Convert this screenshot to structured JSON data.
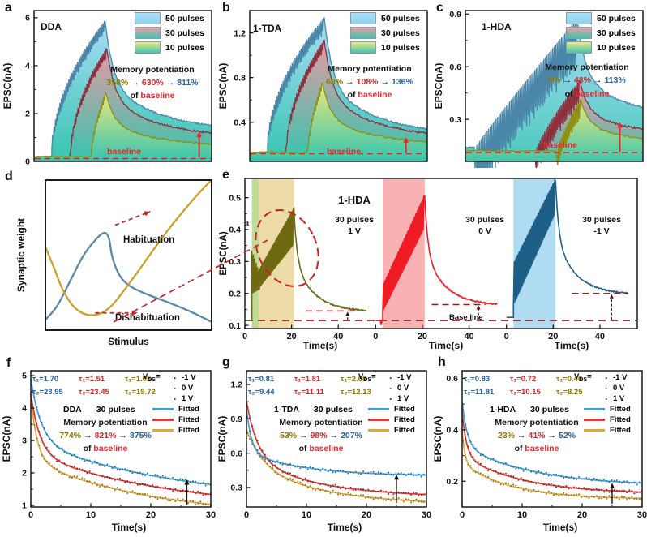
{
  "glyphs": {
    "arrow": "→",
    "of": "of",
    "baseline": "baseline",
    "v": "V",
    "ds": "DS",
    "eq": "=",
    "dot": "·"
  },
  "colors": {
    "accent_red": "#e8242b",
    "dark_red_dash": "#9b1b1b",
    "teal": "#35c5af",
    "pot_blue_line": "#4a86a8",
    "pot_red_line": "#8e2f3e",
    "pot_olive_line": "#8f8f12",
    "pot_blue_fill": "#a9dcf5",
    "pot_red_fill": "#e49ba3",
    "pot_olive_fill": "#ebe77e",
    "fit_blue": "#3f9fd8",
    "fit_red": "#e03a34",
    "fit_yellow": "#e2a636",
    "seq_olive": "#6f6a12",
    "seq_red": "#ee1c25",
    "seq_blue": "#1d5e85",
    "band_green": "#b9d98a",
    "band_tan": "#ecd9a0",
    "band_pink": "#f7abad",
    "band_lblue": "#a8d9f2",
    "d_blue": "#5b87a8",
    "d_gold": "#c9a227",
    "d_arrow": "#c0272d"
  },
  "a": {
    "letter": "a",
    "title": "DDA",
    "legend": [
      "50 pulses",
      "30 pulses",
      "10 pulses"
    ],
    "memory_title": "Memory potentiation",
    "pcts": [
      "358%",
      "630%",
      "811%"
    ],
    "baseline_label": "baseline"
  },
  "b": {
    "letter": "b",
    "title": "1-TDA",
    "legend": [
      "50 pulses",
      "30 pulses",
      "10 pulses"
    ],
    "memory_title": "Memory potentiation",
    "pcts": [
      "68%",
      "108%",
      "136%"
    ],
    "baseline_label": "baseline"
  },
  "c": {
    "letter": "c",
    "title": "1-HDA",
    "legend": [
      "50 pulses",
      "30 pulses",
      "10 pulses"
    ],
    "memory_title": "Memory potentiation",
    "pcts": [
      "0%",
      "43%",
      "113%"
    ],
    "baseline_label": "baseline"
  },
  "d": {
    "letter": "d",
    "habituation": "Habituation",
    "dishabituation": "Dishabituation"
  },
  "e": {
    "letter": "e",
    "title": "1-HDA",
    "stray_label": "a",
    "baseline_label": "Base line",
    "xlabel": "Time(s)",
    "segs": [
      {
        "l1": "30 pulses",
        "l2": "1 V"
      },
      {
        "l1": "30 pulses",
        "l2": "0 V"
      },
      {
        "l1": "30 pulses",
        "l2": "-1 V"
      }
    ]
  },
  "vlegend": {
    "volts": [
      "-1 V",
      "0 V",
      "1 V"
    ],
    "fitted": [
      "Fitted",
      "Fitted",
      "Fitted"
    ]
  },
  "f": {
    "letter": "f",
    "material": "DDA",
    "pulses": "30 pulses",
    "memory_title": "Memory potentiation",
    "pcts": [
      "774%",
      "821%",
      "875%"
    ],
    "tau1": [
      "τ₁=1.70",
      "τ₁=1.51",
      "τ₁=1.05"
    ],
    "tau2": [
      "τ₂=23.95",
      "τ₂=23.45",
      "τ₂=19.72"
    ]
  },
  "g": {
    "letter": "g",
    "material": "1-TDA",
    "pulses": "30 pulses",
    "memory_title": "Memory potentiation",
    "pcts": [
      "53%",
      "98%",
      "207%"
    ],
    "tau1": [
      "τ₁=0.81",
      "τ₁=1.81",
      "τ₁=2.68"
    ],
    "tau2": [
      "τ₂=9.44",
      "τ₂=11.11",
      "τ₂=12.13"
    ]
  },
  "h": {
    "letter": "h",
    "material": "1-HDA",
    "pulses": "30 pulses",
    "memory_title": "Memory potentiation",
    "pcts": [
      "23%",
      "41%",
      "52%"
    ],
    "tau1": [
      "τ₁=0.83",
      "τ₁=0.72",
      "τ₁=0.46"
    ],
    "tau2": [
      "τ₂=11.81",
      "τ₂=10.15",
      "τ₂=8.25"
    ]
  },
  "chart_data": [
    {
      "type": "pot",
      "target": "a",
      "ylabel": "EPSC(nA)",
      "ylim": [
        0,
        6.3
      ],
      "yticks": [
        0,
        2,
        4,
        6
      ],
      "ytick_labels": [
        "0",
        "2",
        "4",
        "6"
      ],
      "baseline": 0.12,
      "arrow": {
        "x": 0.93,
        "to": 1.25
      },
      "series": [
        {
          "key": "blue",
          "name": "50 pulses",
          "tStart": 0.1,
          "tPeak": 0.4,
          "peak": 5.85,
          "amp": 0.5,
          "start": 0.1,
          "end": 1.22,
          "riseExp": 0.5
        },
        {
          "key": "red",
          "name": "30 pulses",
          "tStart": 0.21,
          "tPeak": 0.41,
          "peak": 4.7,
          "amp": 0.42,
          "start": 0.18,
          "end": 0.95,
          "riseExp": 0.5
        },
        {
          "key": "olive",
          "name": "10 pulses",
          "tStart": 0.325,
          "tPeak": 0.405,
          "peak": 2.85,
          "amp": 0.32,
          "start": 0.2,
          "end": 0.58,
          "riseExp": 0.6
        }
      ]
    },
    {
      "type": "pot",
      "target": "b",
      "ylabel": "EPSC(nA)",
      "ylim": [
        0.05,
        1.4
      ],
      "yticks": [
        0.4,
        0.8,
        1.2
      ],
      "ytick_labels": [
        "0.4",
        "0.8",
        "1.2"
      ],
      "baseline": 0.12,
      "arrow": {
        "x": 0.88,
        "to": 0.27
      },
      "series": [
        {
          "key": "blue",
          "name": "50 pulses",
          "tStart": 0.1,
          "tPeak": 0.42,
          "peak": 1.33,
          "amp": 0.13,
          "start": 0.12,
          "end": 0.27,
          "riseExp": 0.5
        },
        {
          "key": "red",
          "name": "30 pulses",
          "tStart": 0.21,
          "tPeak": 0.42,
          "peak": 1.13,
          "amp": 0.1,
          "start": 0.13,
          "end": 0.245,
          "riseExp": 0.5
        },
        {
          "key": "olive",
          "name": "10 pulses",
          "tStart": 0.33,
          "tPeak": 0.41,
          "peak": 0.75,
          "amp": 0.08,
          "start": 0.13,
          "end": 0.19,
          "riseExp": 0.6
        }
      ]
    },
    {
      "type": "pot",
      "target": "c",
      "ylabel": "EPSC(nA)",
      "ylim": [
        0.06,
        0.92
      ],
      "yticks": [
        0.3,
        0.6,
        0.9
      ],
      "ytick_labels": [
        "0.3",
        "0.6",
        "0.9"
      ],
      "baseline": 0.11,
      "arrow": {
        "x": 0.87,
        "to": 0.285
      },
      "series": [
        {
          "key": "blue",
          "name": "50 pulses",
          "tStart": 0.06,
          "tPeak": 0.63,
          "peak": 0.87,
          "amp": 0.25,
          "start": 0.14,
          "end": 0.29,
          "riseExp": 0.95
        },
        {
          "key": "red",
          "name": "30 pulses",
          "tStart": 0.4,
          "tPeak": 0.645,
          "peak": 0.52,
          "amp": 0.13,
          "start": 0.115,
          "end": 0.2,
          "riseExp": 0.8
        },
        {
          "key": "olive",
          "name": "10 pulses",
          "tStart": 0.52,
          "tPeak": 0.65,
          "peak": 0.41,
          "amp": 0.1,
          "start": 0.12,
          "end": 0.155,
          "riseExp": 0.8
        }
      ]
    },
    {
      "type": "dual",
      "target": "d",
      "xlabel": "Stimulus",
      "ylabel": "Synaptic weight",
      "curves": [
        {
          "key": "blue",
          "pts": [
            [
              0,
              0.07
            ],
            [
              0.07,
              0.16
            ],
            [
              0.15,
              0.33
            ],
            [
              0.23,
              0.5
            ],
            [
              0.3,
              0.6
            ],
            [
              0.345,
              0.645
            ],
            [
              0.37,
              0.64
            ],
            [
              0.385,
              0.6
            ],
            [
              0.4,
              0.5
            ],
            [
              0.43,
              0.4
            ],
            [
              0.47,
              0.33
            ],
            [
              0.53,
              0.28
            ],
            [
              0.62,
              0.235
            ],
            [
              0.75,
              0.18
            ],
            [
              0.88,
              0.12
            ],
            [
              1,
              0.055
            ]
          ]
        },
        {
          "key": "gold",
          "pts": [
            [
              0,
              0.555
            ],
            [
              0.05,
              0.42
            ],
            [
              0.1,
              0.28
            ],
            [
              0.16,
              0.17
            ],
            [
              0.22,
              0.115
            ],
            [
              0.28,
              0.1
            ],
            [
              0.34,
              0.115
            ],
            [
              0.4,
              0.165
            ],
            [
              0.47,
              0.26
            ],
            [
              0.55,
              0.38
            ],
            [
              0.64,
              0.52
            ],
            [
              0.74,
              0.67
            ],
            [
              0.85,
              0.82
            ],
            [
              0.95,
              0.945
            ],
            [
              1,
              1.0
            ]
          ]
        }
      ],
      "arrows": [
        {
          "f": [
            0.42,
            0.7
          ],
          "t": [
            0.63,
            0.79
          ]
        },
        {
          "f": [
            0.3,
            0.115
          ],
          "t": [
            0.555,
            0.115
          ]
        }
      ]
    },
    {
      "type": "seq",
      "target": "e",
      "ylabel": "EPSC(nA)",
      "ylim": [
        0.09,
        0.56
      ],
      "yticks": [
        0.1,
        0.2,
        0.3,
        0.4,
        0.5
      ],
      "ytick_labels": [
        "0.1",
        "0.2",
        "0.3",
        "0.4",
        "0.5"
      ],
      "tmax": 56,
      "xticks": [
        0,
        20,
        40
      ],
      "xtick_labels": [
        "0",
        "20",
        "40"
      ],
      "baseline": 0.115,
      "segments": [
        {
          "key": "olive",
          "bands": [
            {
              "t0": 3,
              "t1": 6,
              "c": "band_green"
            },
            {
              "t0": 6,
              "t1": 21,
              "c": "band_tan"
            }
          ],
          "flat": 0.115,
          "spike": {
            "hi": 0.335,
            "lo": 0.2,
            "endHi": 0.27,
            "endLo": 0.212
          },
          "rise": {
            "t0": 6,
            "lo0": 0.212,
            "lo1": 0.35,
            "hi0": 0.27,
            "hi1": 0.465
          },
          "peak": 0.465,
          "end": 0.142,
          "dash": {
            "t0": 26,
            "t1": 47,
            "v": 0.145
          },
          "arrowT": 44
        },
        {
          "key": "red",
          "bands": [
            {
              "t0": 3,
              "t1": 21,
              "c": "band_pink"
            }
          ],
          "flat": 0.115,
          "dip": true,
          "rise": {
            "t0": 3,
            "lo0": 0.135,
            "lo1": 0.4,
            "hi0": 0.22,
            "hi1": 0.505
          },
          "peak": 0.505,
          "end": 0.162,
          "dash": {
            "t0": 24,
            "t1": 47,
            "v": 0.165
          },
          "arrowT": 44
        },
        {
          "key": "blue",
          "bands": [
            {
              "t0": 3,
              "t1": 21,
              "c": "band_lblue"
            }
          ],
          "flat": 0.125,
          "rise": {
            "t0": 3,
            "lo0": 0.155,
            "lo1": 0.445,
            "hi0": 0.29,
            "hi1": 0.555
          },
          "peak": 0.555,
          "end": 0.196,
          "dash": {
            "t0": 28,
            "t1": 52,
            "v": 0.2
          },
          "arrowT": 45
        }
      ]
    },
    {
      "type": "decay",
      "target": "f",
      "ylabel": "EPSC(nA)",
      "xlabel": "Time(s)",
      "ylim": [
        0.95,
        5.15
      ],
      "yticks": [
        1,
        2,
        3,
        4,
        5
      ],
      "ytick_labels": [
        "1",
        "2",
        "3",
        "4",
        "5"
      ],
      "xlim": [
        0,
        30
      ],
      "xticks": [
        0,
        10,
        20,
        30
      ],
      "xtick_labels": [
        "0",
        "10",
        "20",
        "30"
      ],
      "xminors": [
        5,
        15,
        25
      ],
      "arrow": {
        "x": 26,
        "from": 1.02,
        "to": 1.8
      },
      "series": [
        {
          "key": "blue",
          "vds": "-1 V",
          "C": 1.1,
          "A1": 1.9,
          "tau1": 1.7,
          "A2": 1.9,
          "tau2": 23.95
        },
        {
          "key": "red",
          "vds": "0 V",
          "C": 0.85,
          "A1": 1.85,
          "tau1": 1.51,
          "A2": 1.75,
          "tau2": 23.45
        },
        {
          "key": "olive",
          "vds": "1 V",
          "C": 0.65,
          "A1": 2.0,
          "tau1": 1.05,
          "A2": 1.75,
          "tau2": 19.72
        }
      ]
    },
    {
      "type": "decay",
      "target": "g",
      "ylabel": "EPSC(nA)",
      "xlabel": "Time(s)",
      "ylim": [
        0.13,
        1.32
      ],
      "yticks": [
        0.3,
        0.6,
        0.9,
        1.2
      ],
      "ytick_labels": [
        "0.3",
        "0.6",
        "0.9",
        "1.2"
      ],
      "xlim": [
        0,
        30
      ],
      "xticks": [
        0,
        10,
        20,
        30
      ],
      "xtick_labels": [
        "0",
        "10",
        "20",
        "30"
      ],
      "xminors": [
        5,
        15,
        25
      ],
      "arrow": {
        "x": 25,
        "from": 0.165,
        "to": 0.415
      },
      "series": [
        {
          "key": "blue",
          "vds": "-1 V",
          "C": 0.4,
          "A1": 0.38,
          "tau1": 0.81,
          "A2": 0.21,
          "tau2": 9.44
        },
        {
          "key": "red",
          "vds": "0 V",
          "C": 0.215,
          "A1": 0.48,
          "tau1": 1.81,
          "A2": 0.36,
          "tau2": 11.11
        },
        {
          "key": "olive",
          "vds": "1 V",
          "C": 0.148,
          "A1": 0.3,
          "tau1": 2.68,
          "A2": 0.36,
          "tau2": 12.13
        }
      ]
    },
    {
      "type": "decay",
      "target": "h",
      "ylabel": "EPSC(nA)",
      "xlabel": "Time(s)",
      "ylim": [
        0.1,
        0.63
      ],
      "yticks": [
        0.2,
        0.4,
        0.6
      ],
      "ytick_labels": [
        "0.2",
        "0.4",
        "0.6"
      ],
      "xlim": [
        0,
        30
      ],
      "xticks": [
        0,
        10,
        20,
        30
      ],
      "xtick_labels": [
        "0",
        "10",
        "20",
        "30"
      ],
      "xminors": [
        5,
        15,
        25
      ],
      "arrow": {
        "x": 25,
        "from": 0.113,
        "to": 0.193
      },
      "series": [
        {
          "key": "blue",
          "vds": "-1 V",
          "C": 0.18,
          "A1": 0.17,
          "tau1": 0.83,
          "A2": 0.16,
          "tau2": 11.81
        },
        {
          "key": "red",
          "vds": "0 V",
          "C": 0.15,
          "A1": 0.17,
          "tau1": 0.72,
          "A2": 0.15,
          "tau2": 10.15
        },
        {
          "key": "olive",
          "vds": "1 V",
          "C": 0.13,
          "A1": 0.13,
          "tau1": 0.46,
          "A2": 0.14,
          "tau2": 8.25
        }
      ]
    }
  ]
}
